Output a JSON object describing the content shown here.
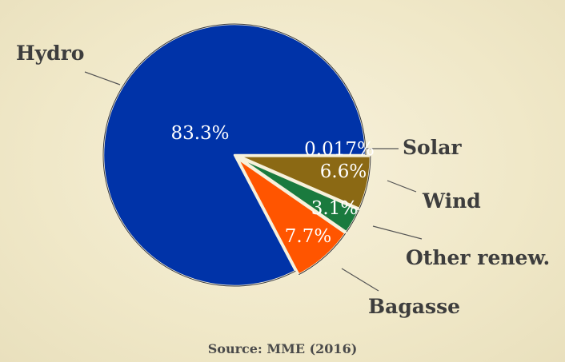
{
  "chart_data": {
    "type": "pie",
    "categories": [
      "Hydro",
      "Solar",
      "Wind",
      "Other renew.",
      "Bagasse"
    ],
    "values": [
      83.3,
      0.017,
      6.6,
      3.1,
      7.7
    ],
    "value_labels": [
      "83.3%",
      "0.017%",
      "6.6%",
      "3.1%",
      "7.7%"
    ],
    "colors": [
      "#0033a8",
      "#8b6914",
      "#8b6914",
      "#1a7a3e",
      "#ff5500"
    ],
    "exploded": [
      false,
      true,
      true,
      true,
      true
    ],
    "source": "Source: MME (2016)"
  }
}
